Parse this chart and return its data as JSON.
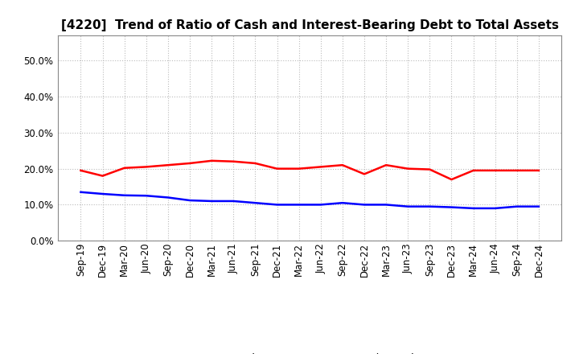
{
  "title": "[4220]  Trend of Ratio of Cash and Interest-Bearing Debt to Total Assets",
  "x_labels": [
    "Sep-19",
    "Dec-19",
    "Mar-20",
    "Jun-20",
    "Sep-20",
    "Dec-20",
    "Mar-21",
    "Jun-21",
    "Sep-21",
    "Dec-21",
    "Mar-22",
    "Jun-22",
    "Sep-22",
    "Dec-22",
    "Mar-23",
    "Jun-23",
    "Sep-23",
    "Dec-23",
    "Mar-24",
    "Jun-24",
    "Sep-24",
    "Dec-24"
  ],
  "cash": [
    19.5,
    18.0,
    20.2,
    20.5,
    21.0,
    21.5,
    22.2,
    22.0,
    21.5,
    20.0,
    20.0,
    20.5,
    21.0,
    18.5,
    21.0,
    20.0,
    19.8,
    17.0,
    19.5,
    19.5,
    19.5,
    19.5
  ],
  "debt": [
    13.5,
    13.0,
    12.6,
    12.5,
    12.0,
    11.2,
    11.0,
    11.0,
    10.5,
    10.0,
    10.0,
    10.0,
    10.5,
    10.0,
    10.0,
    9.5,
    9.5,
    9.3,
    9.0,
    9.0,
    9.5,
    9.5
  ],
  "cash_color": "#ff0000",
  "debt_color": "#0000ff",
  "ylim_min": 0,
  "ylim_max": 57,
  "yticks": [
    0,
    10,
    20,
    30,
    40,
    50
  ],
  "grid_color": "#bbbbbb",
  "bg_color": "#ffffff",
  "plot_bg_color": "#ffffff",
  "legend_cash": "Cash",
  "legend_debt": "Interest-Bearing Debt",
  "line_width": 1.8,
  "title_fontsize": 11,
  "tick_fontsize": 8.5
}
